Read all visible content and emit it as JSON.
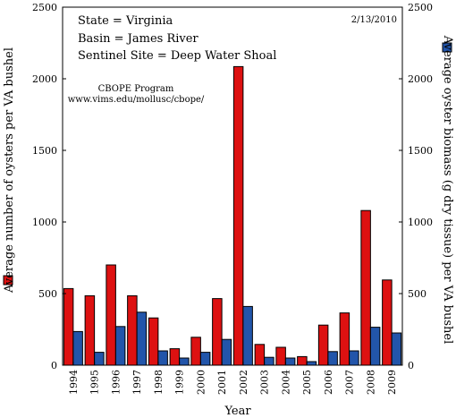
{
  "chart_data": {
    "type": "bar",
    "info": {
      "state": "State = Virginia",
      "basin": "Basin = James River",
      "site": "Sentinel Site = Deep Water Shoal",
      "date": "2/13/2010",
      "program": "CBOPE Program",
      "url": "www.vims.edu/mollusc/cbope/"
    },
    "xlabel": "Year",
    "ylabel_left": "Average number of oysters per VA bushel",
    "ylabel_right": "Average oyster biomass (g dry tissue) per VA bushel",
    "ylim": [
      0,
      2500
    ],
    "y2lim": [
      0,
      2500
    ],
    "yticks": [
      0,
      500,
      1000,
      1500,
      2000,
      2500
    ],
    "categories": [
      "1994",
      "1995",
      "1996",
      "1997",
      "1998",
      "1999",
      "2000",
      "2001",
      "2002",
      "2003",
      "2004",
      "2005",
      "2006",
      "2007",
      "2008",
      "2009"
    ],
    "series": [
      {
        "key": "count",
        "axis": "left",
        "color": "#dd1111",
        "values": [
          535,
          485,
          700,
          485,
          330,
          115,
          195,
          465,
          2085,
          145,
          125,
          60,
          280,
          365,
          1080,
          595
        ]
      },
      {
        "key": "biomass",
        "axis": "right",
        "color": "#2255aa",
        "values": [
          235,
          90,
          270,
          370,
          100,
          50,
          90,
          180,
          410,
          55,
          50,
          25,
          95,
          100,
          265,
          225
        ]
      }
    ],
    "grid": false,
    "legend": "side squares beside axis titles"
  }
}
